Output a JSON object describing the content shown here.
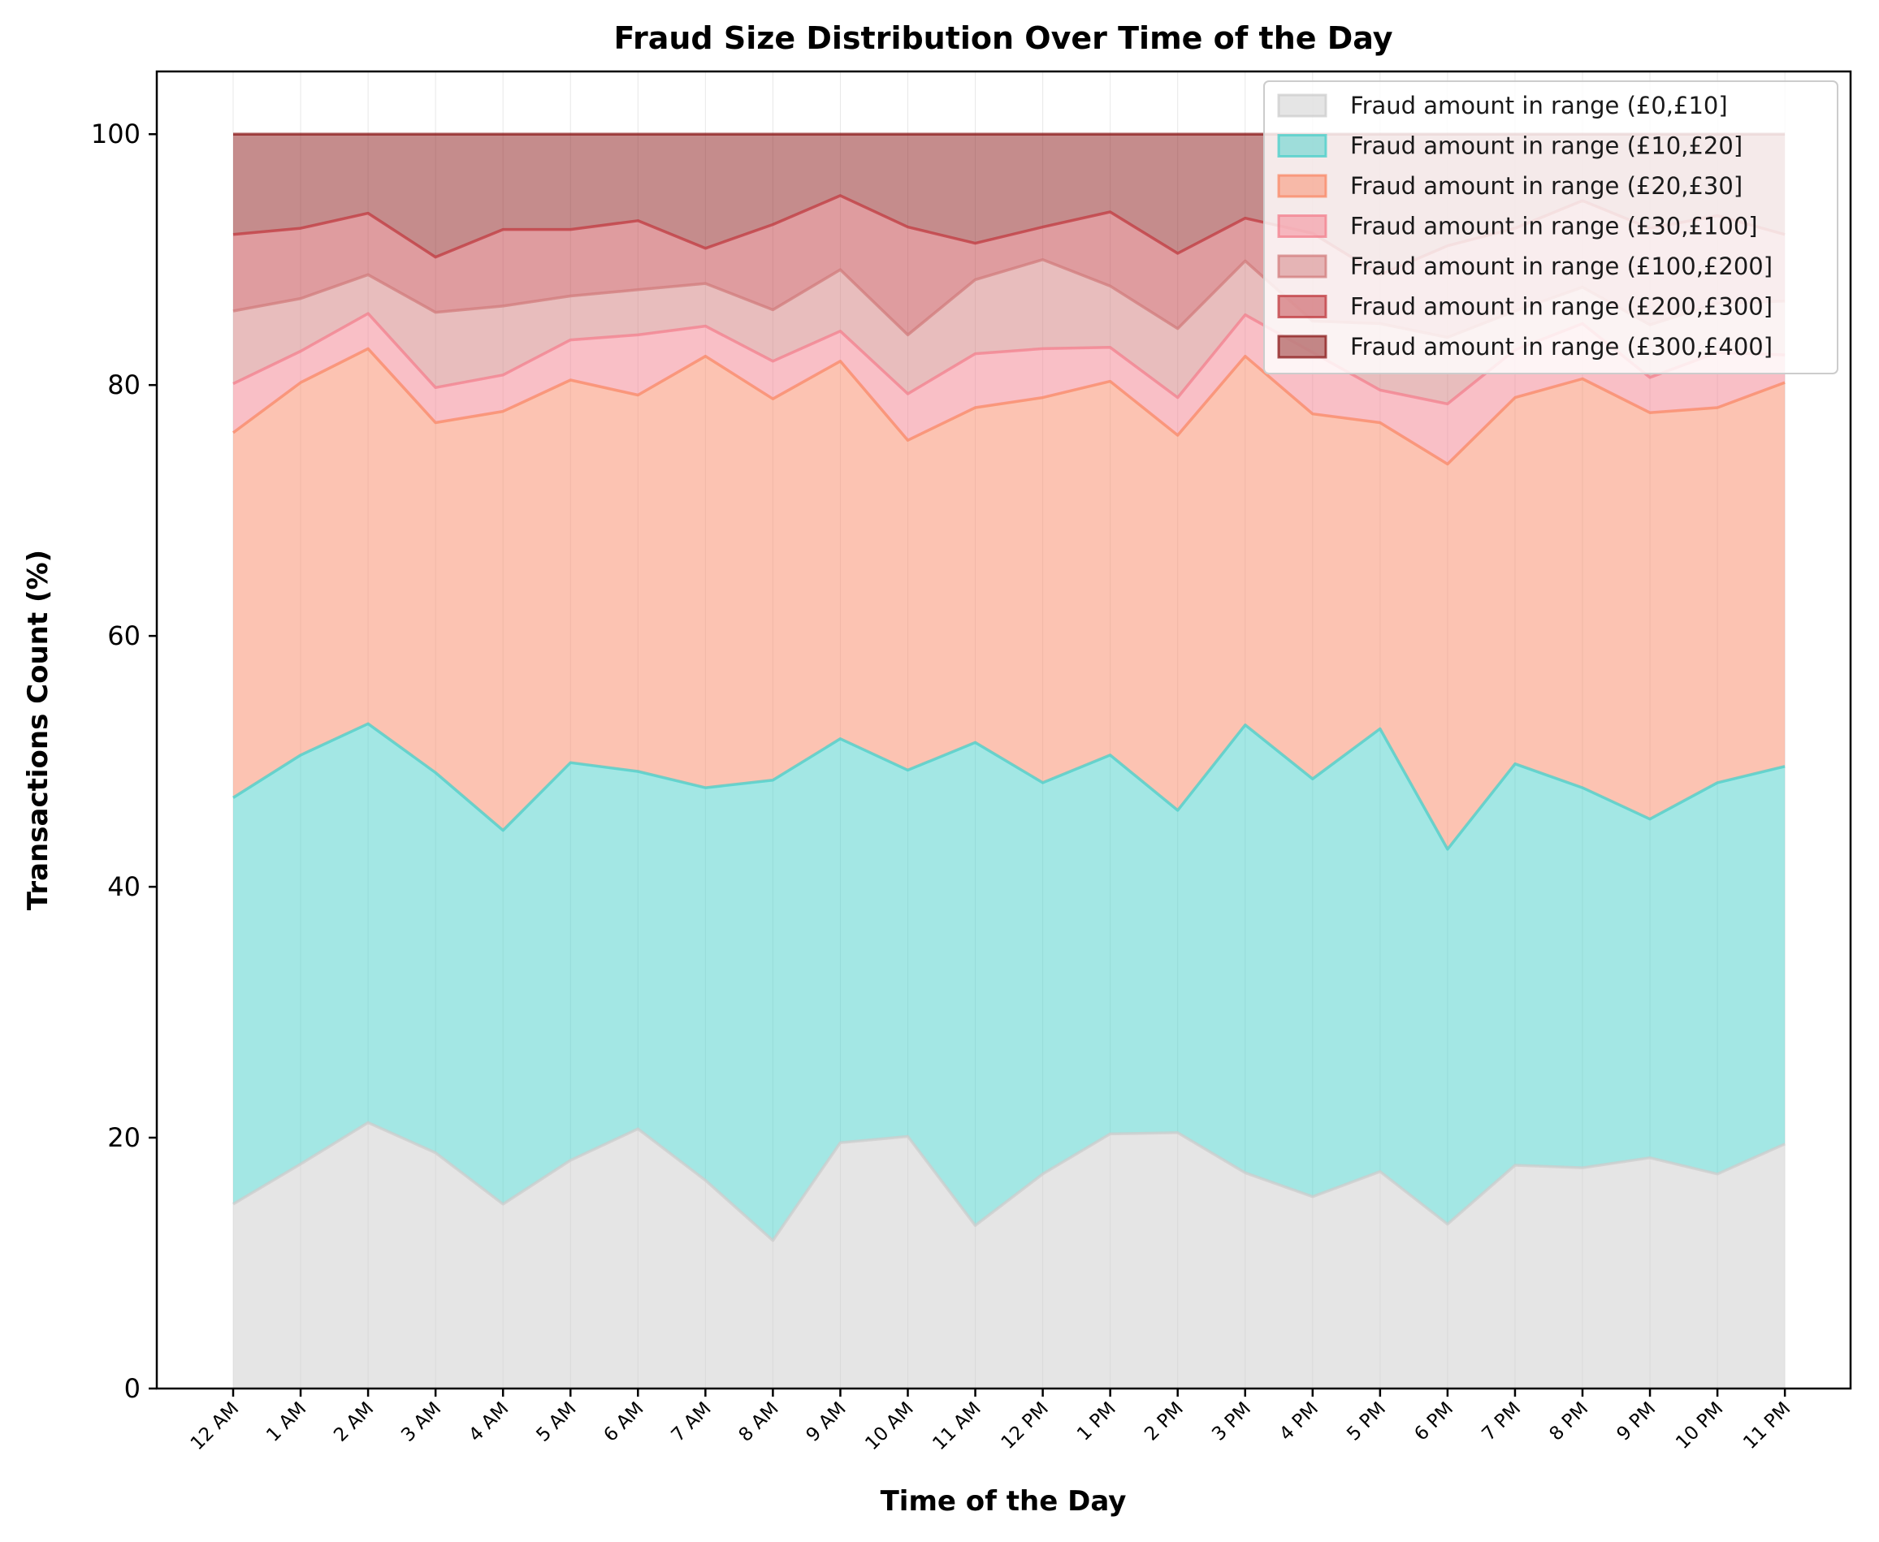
{
  "chart_data": {
    "type": "area",
    "stacked": true,
    "title": "Fraud Size Distribution Over Time of the Day",
    "xlabel": "Time of the Day",
    "ylabel": "Transactions Count (%)",
    "ylim": [
      0,
      105
    ],
    "yticks": [
      0,
      20,
      40,
      60,
      80,
      100
    ],
    "grid": "vertical",
    "legend_position": "top-right",
    "categories": [
      "12 AM",
      "1 AM",
      "2 AM",
      "3 AM",
      "4 AM",
      "5 AM",
      "6 AM",
      "7 AM",
      "8 AM",
      "9 AM",
      "10 AM",
      "11 AM",
      "12 PM",
      "1 PM",
      "2 PM",
      "3 PM",
      "4 PM",
      "5 PM",
      "6 PM",
      "7 PM",
      "8 PM",
      "9 PM",
      "10 PM",
      "11 PM"
    ],
    "series": [
      {
        "name": "Fraud amount in range (£0,£10]",
        "color": "#cccccc",
        "values": [
          14.7,
          17.9,
          21.2,
          18.8,
          14.7,
          18.2,
          20.7,
          16.6,
          11.8,
          19.6,
          20.1,
          13.0,
          17.1,
          20.3,
          20.4,
          17.2,
          15.3,
          17.3,
          13.1,
          17.8,
          17.6,
          18.4,
          17.1,
          19.5
        ]
      },
      {
        "name": "Fraud amount in range (£10,£20]",
        "color": "#48cfc9",
        "values": [
          32.4,
          32.6,
          31.8,
          30.3,
          29.8,
          31.7,
          28.5,
          31.3,
          36.7,
          32.2,
          29.2,
          38.5,
          31.2,
          30.2,
          25.7,
          35.7,
          33.3,
          35.3,
          29.9,
          32.0,
          30.3,
          27.0,
          31.2,
          30.1
        ]
      },
      {
        "name": "Fraud amount in range (£20,£30]",
        "color": "#fa8866",
        "values": [
          29.1,
          29.7,
          29.9,
          27.9,
          33.4,
          30.5,
          30.0,
          34.4,
          30.4,
          30.1,
          26.3,
          26.7,
          30.7,
          29.8,
          29.9,
          29.4,
          29.1,
          24.4,
          30.7,
          29.2,
          32.6,
          32.4,
          29.9,
          30.6
        ]
      },
      {
        "name": "Fraud amount in range (£30,£100]",
        "color": "#f3808e",
        "values": [
          3.9,
          2.5,
          2.8,
          2.8,
          2.9,
          3.2,
          4.8,
          2.4,
          3.0,
          2.4,
          3.7,
          4.3,
          3.9,
          2.7,
          3.0,
          3.3,
          4.9,
          2.6,
          4.8,
          3.8,
          4.4,
          2.8,
          4.4,
          2.2
        ]
      },
      {
        "name": "Fraud amount in range (£100,£200]",
        "color": "#d27c7c",
        "values": [
          5.8,
          4.2,
          3.1,
          6.0,
          5.5,
          3.5,
          3.6,
          3.4,
          4.1,
          4.9,
          4.7,
          5.9,
          7.1,
          4.9,
          5.5,
          4.3,
          2.5,
          5.3,
          5.3,
          3.1,
          2.9,
          4.2,
          3.9,
          4.3
        ]
      },
      {
        "name": "Fraud amount in range (£200,£300]",
        "color": "#c0393f",
        "values": [
          6.1,
          5.6,
          4.9,
          4.4,
          6.1,
          5.3,
          5.5,
          2.8,
          6.8,
          5.9,
          8.6,
          2.9,
          2.6,
          5.9,
          6.0,
          3.4,
          7.0,
          3.9,
          7.3,
          6.6,
          6.9,
          7.7,
          7.0,
          5.3
        ]
      },
      {
        "name": "Fraud amount in range (£300,£400]",
        "color": "#8b1a1a",
        "values": [
          8.0,
          7.5,
          6.3,
          9.8,
          7.6,
          7.6,
          6.9,
          9.1,
          7.2,
          4.9,
          7.4,
          8.7,
          7.4,
          6.4,
          9.5,
          6.7,
          7.9,
          11.2,
          8.9,
          7.5,
          5.3,
          7.5,
          6.5,
          8.0
        ]
      }
    ]
  }
}
